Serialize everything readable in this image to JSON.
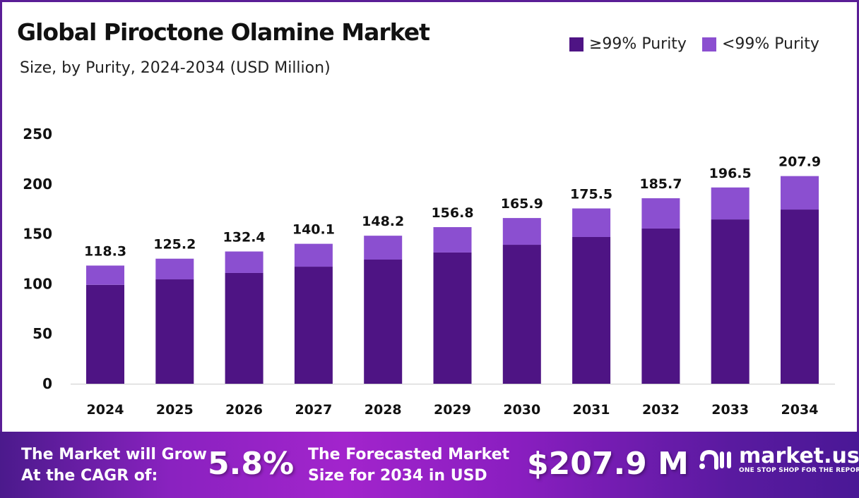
{
  "header": {
    "title": "Global Piroctone Olamine Market",
    "subtitle": "Size, by Purity, 2024-2034 (USD Million)"
  },
  "chart_data": {
    "type": "bar",
    "stacked": true,
    "categories": [
      "2024",
      "2025",
      "2026",
      "2027",
      "2028",
      "2029",
      "2030",
      "2031",
      "2032",
      "2033",
      "2034"
    ],
    "series": [
      {
        "name": "≥99% Purity",
        "color": "#4e1484",
        "values": [
          99.0,
          104.5,
          110.9,
          117.2,
          124.3,
          131.4,
          139.1,
          146.9,
          155.4,
          164.5,
          174.4
        ]
      },
      {
        "name": "<99% Purity",
        "color": "#8b4fd0",
        "values": [
          19.3,
          20.7,
          21.5,
          22.9,
          23.9,
          25.4,
          26.8,
          28.6,
          30.3,
          32.0,
          33.5
        ]
      }
    ],
    "totals": [
      "118.3",
      "125.2",
      "132.4",
      "140.1",
      "148.2",
      "156.8",
      "165.9",
      "175.5",
      "185.7",
      "196.5",
      "207.9"
    ],
    "yticks": [
      "0",
      "50",
      "100",
      "150",
      "200",
      "250"
    ],
    "ylim": [
      0,
      250
    ],
    "grid": false,
    "legend_position": "top-right"
  },
  "footer": {
    "cagr_label_1": "The Market will Grow",
    "cagr_label_2": "At the CAGR of:",
    "cagr_value": "5.8%",
    "forecast_label_1": "The Forecasted Market",
    "forecast_label_2": "Size for 2034 in USD",
    "forecast_value": "$207.9 M",
    "logo_text": "market.us",
    "logo_tagline": "ONE STOP SHOP FOR THE REPORTS"
  }
}
